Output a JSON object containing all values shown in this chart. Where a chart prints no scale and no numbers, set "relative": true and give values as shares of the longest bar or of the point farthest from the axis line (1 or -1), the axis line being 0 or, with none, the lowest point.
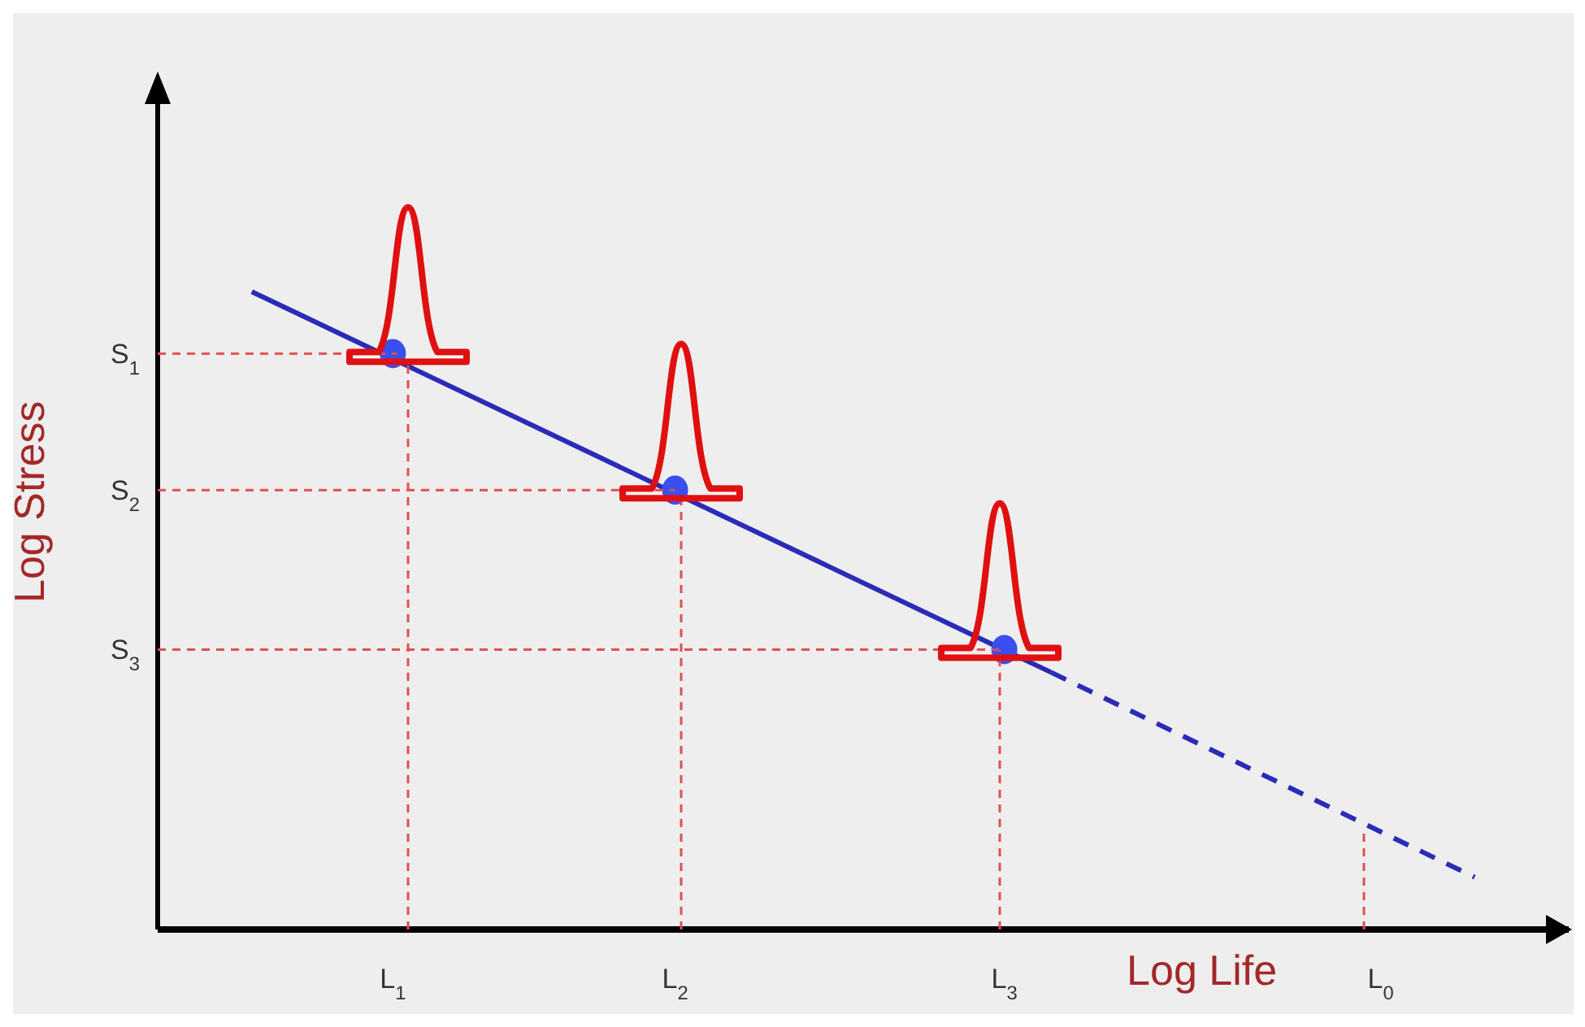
{
  "chart_data": {
    "type": "line",
    "xlabel": "Log Life",
    "ylabel": "Log Stress",
    "relative": true,
    "categories": [
      null,
      null,
      null,
      null,
      null,
      "L$_{1}$",
      null,
      null,
      null,
      null,
      null,
      "L$_{2}$",
      null,
      null,
      null,
      null,
      null,
      null,
      "L$_{3}$",
      null,
      null,
      null,
      null,
      null,
      null,
      null,
      "L$_{0}$",
      null,
      null,
      null,
      null
    ],
    "series": [
      {
        "color": "#2b2bb8",
        "line_style": "solid",
        "values": [
          null,
          null,
          1,
          null,
          null,
          null,
          null,
          null,
          null,
          null,
          null,
          null,
          null,
          null,
          null,
          null,
          null,
          null,
          null,
          0.403,
          null,
          null,
          null,
          null,
          null,
          null,
          null,
          null,
          null,
          null,
          null
        ]
      },
      {
        "color": "#2b2bb8",
        "line_style": "dashed",
        "values": [
          null,
          null,
          null,
          null,
          null,
          null,
          null,
          null,
          null,
          null,
          null,
          null,
          null,
          null,
          null,
          null,
          null,
          null,
          null,
          0.403,
          null,
          null,
          null,
          null,
          null,
          null,
          null,
          null,
          0.082,
          null,
          null
        ]
      },
      {
        "type": "scatter",
        "color": "#3a4ff0",
        "marker": "circle",
        "values": [
          null,
          null,
          null,
          null,
          null,
          0.903,
          null,
          null,
          null,
          null,
          null,
          0.689,
          null,
          null,
          null,
          null,
          null,
          null,
          0.439,
          null,
          null,
          null,
          null,
          null,
          null,
          null,
          null,
          null,
          null,
          null,
          null
        ]
      }
    ],
    "annotations": [
      "S$_{1}$",
      "S$_{2}$",
      "S$_{3}$"
    ],
    "legend": false
  }
}
